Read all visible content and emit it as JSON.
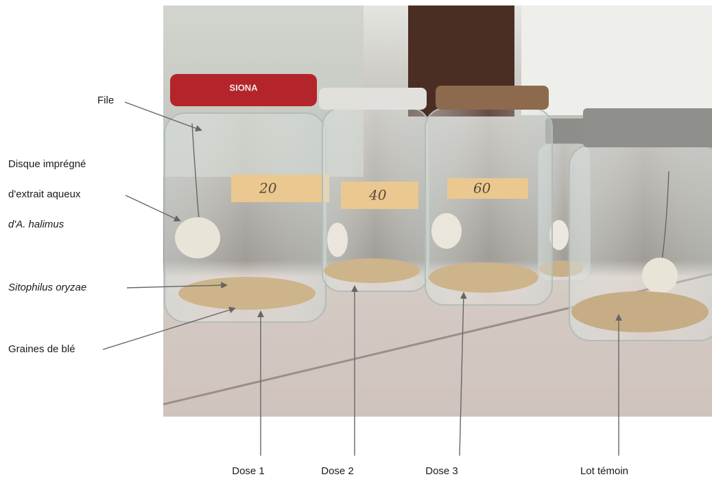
{
  "annotations": {
    "left": [
      "File",
      "Disque imprégné",
      "d'extrait  aqueux",
      "d'A. halimus",
      "Sitophilus oryzae",
      "Graines de blé"
    ],
    "bottom": [
      "Dose 1",
      "Dose 2",
      "Dose 3",
      "Lot témoin"
    ]
  },
  "lid_text": "SIONA",
  "jar_labels": [
    "20",
    "40",
    "60"
  ]
}
